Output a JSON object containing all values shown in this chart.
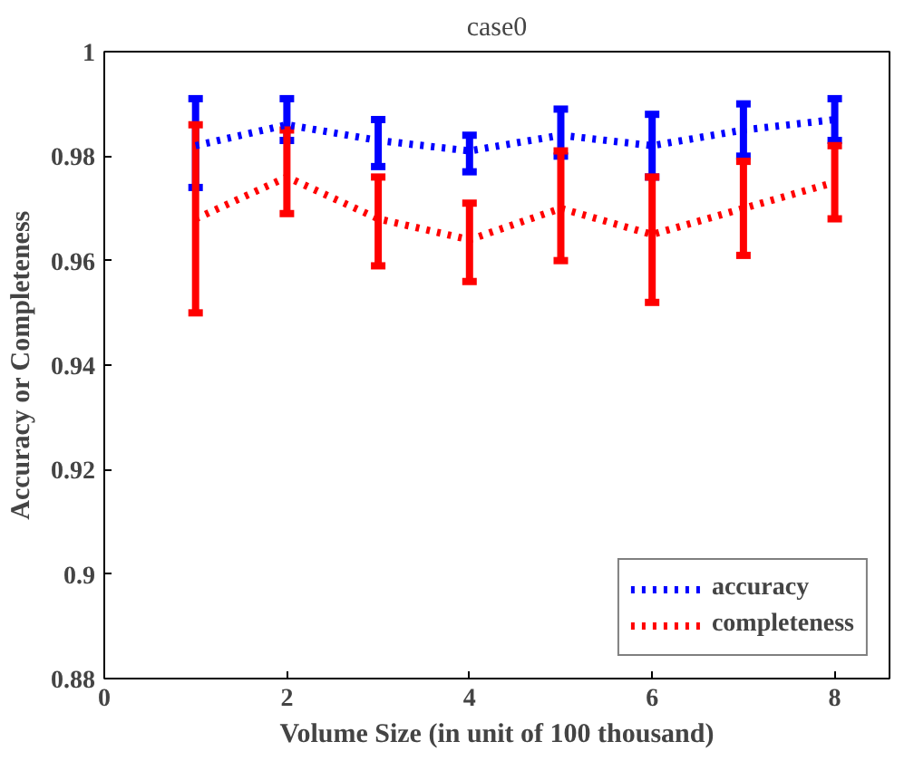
{
  "chart_data": {
    "type": "line",
    "title": "case0",
    "xlabel": "Volume Size (in unit of 100 thousand)",
    "ylabel": "Accuracy or Completeness",
    "x": [
      1,
      2,
      3,
      4,
      5,
      6,
      7,
      8
    ],
    "series": [
      {
        "name": "accuracy",
        "color": "#0000ff",
        "values": [
          0.982,
          0.986,
          0.983,
          0.981,
          0.984,
          0.982,
          0.985,
          0.987
        ],
        "errors": [
          [
            0.974,
            0.991
          ],
          [
            0.983,
            0.991
          ],
          [
            0.978,
            0.987
          ],
          [
            0.977,
            0.984
          ],
          [
            0.98,
            0.989
          ],
          [
            0.976,
            0.988
          ],
          [
            0.98,
            0.99
          ],
          [
            0.983,
            0.991
          ]
        ]
      },
      {
        "name": "completeness",
        "color": "#ff0000",
        "values": [
          0.968,
          0.976,
          0.968,
          0.964,
          0.97,
          0.965,
          0.97,
          0.975
        ],
        "errors": [
          [
            0.95,
            0.986
          ],
          [
            0.969,
            0.985
          ],
          [
            0.959,
            0.976
          ],
          [
            0.956,
            0.971
          ],
          [
            0.96,
            0.981
          ],
          [
            0.952,
            0.976
          ],
          [
            0.961,
            0.979
          ],
          [
            0.968,
            0.982
          ]
        ]
      }
    ],
    "xlim": [
      0,
      8.6
    ],
    "ylim": [
      0.88,
      1
    ],
    "xticks": [
      0,
      2,
      4,
      6,
      8
    ],
    "yticks": [
      0.88,
      0.9,
      0.92,
      0.94,
      0.96,
      0.98,
      1
    ],
    "grid": false,
    "legend": "bottom right",
    "line_style": "dotted",
    "marker": "none"
  }
}
